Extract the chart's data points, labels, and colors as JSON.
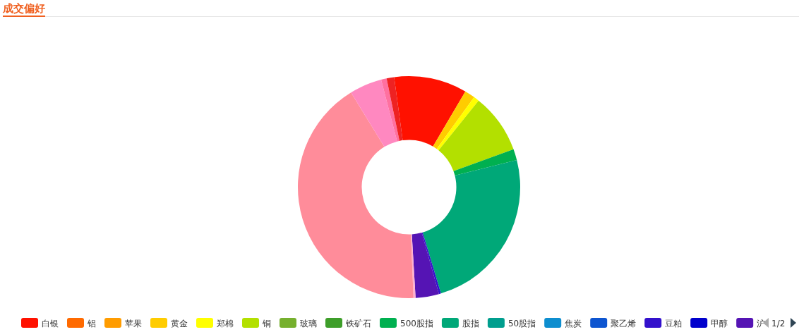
{
  "chart_data": {
    "type": "donut",
    "title": "成交偏好",
    "legend": "bottom",
    "annotations": [
      "1/2"
    ],
    "categories": [
      "白银",
      "铝",
      "苹果",
      "黄金",
      "郑棉",
      "铜",
      "玻璃",
      "铁矿石",
      "500股指",
      "股指",
      "50股指",
      "焦炭",
      "聚乙烯",
      "豆粕",
      "甲醇",
      "沪",
      null,
      null,
      null,
      null,
      null
    ],
    "values": [
      10.6,
      0,
      0,
      1.5,
      0.8,
      8.7,
      0,
      0,
      1.6,
      24.3,
      0,
      0,
      0,
      0.3,
      0,
      3.4,
      0.3,
      41.9,
      4.7,
      0.8,
      1.1
    ],
    "colors": [
      "#ff1100",
      "#ff6a00",
      "#ff9c00",
      "#ffcc00",
      "#ffff00",
      "#b3e000",
      "#76b02e",
      "#3e9e2a",
      "#00b050",
      "#00a878",
      "#009e8e",
      "#0e8ecf",
      "#0d55d0",
      "#3311cc",
      "#0000cc",
      "#5514b4",
      "#ffb0d0",
      "#ff8c9a",
      "#ff88c0",
      "#ff70a0",
      "#ee2222"
    ]
  }
}
